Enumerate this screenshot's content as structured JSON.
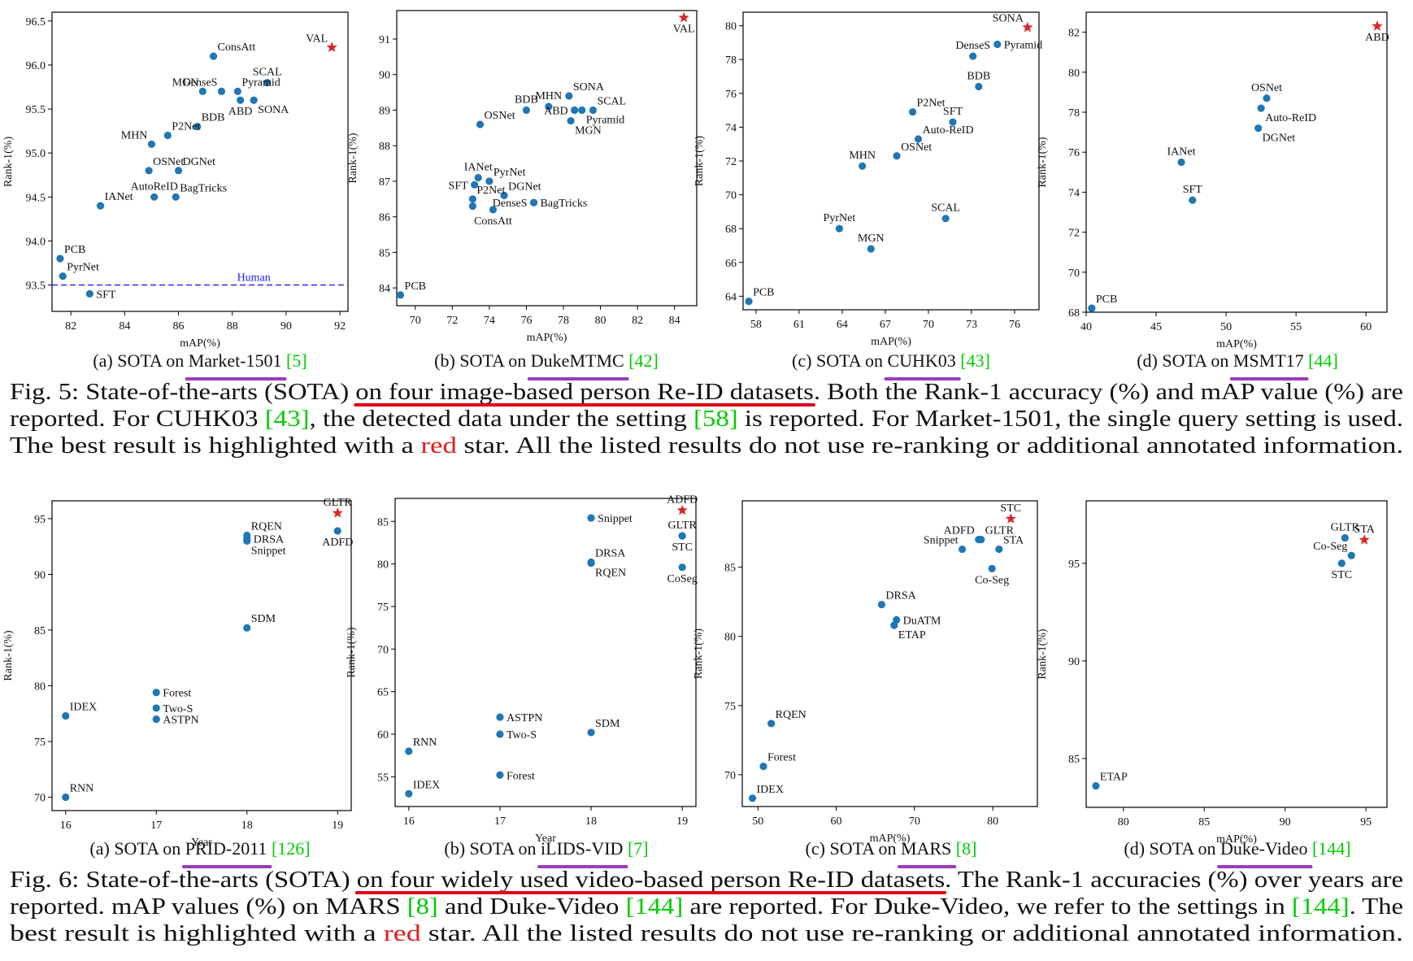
{
  "colors": {
    "point": "#1f77b4",
    "best": "#d62728",
    "human_line": "#1a1aff",
    "ref_green": "#00cc00",
    "highlight_red": "#e31a1c",
    "underline_purple": "#9b3cb7",
    "underline_red": "#e0001a",
    "text": "#111111"
  },
  "figure5": {
    "panels": [
      {
        "label_prefix": "(a) SOTA on ",
        "dataset": "Market-1501",
        "ref": "[5]"
      },
      {
        "label_prefix": "(b) SOTA on ",
        "dataset": "DukeMTMC",
        "ref": "[42]"
      },
      {
        "label_prefix": "(c) SOTA on ",
        "dataset": "CUHK03",
        "ref": "[43]"
      },
      {
        "label_prefix": "(d) SOTA on ",
        "dataset": "MSMT17",
        "ref": "[44]"
      }
    ],
    "caption_lines": [
      [
        {
          "t": "Fig. 5: State-of-the-arts (SOTA) "
        },
        {
          "t": "on four image-based person Re-ID datasets",
          "u": "red"
        },
        {
          "t": ". Both the Rank-1 accuracy (%) and mAP value (%) are"
        }
      ],
      [
        {
          "t": "reported. For CUHK03 "
        },
        {
          "t": "[43]",
          "c": "green"
        },
        {
          "t": ", the detected data under the setting "
        },
        {
          "t": "[58]",
          "c": "green"
        },
        {
          "t": " is reported. For Market-1501, the single query setting is used."
        }
      ],
      [
        {
          "t": "The best result is highlighted with a "
        },
        {
          "t": "red",
          "c": "red"
        },
        {
          "t": " star. All the listed results do not use re-ranking or additional annotated information."
        }
      ]
    ]
  },
  "figure6": {
    "panels": [
      {
        "label_prefix": "(a) SOTA on ",
        "dataset": "PRID-2011",
        "ref": "[126]"
      },
      {
        "label_prefix": "(b) SOTA on ",
        "dataset": "iLIDS-VID",
        "ref": "[7]"
      },
      {
        "label_prefix": "(c) SOTA on ",
        "dataset": "MARS",
        "ref": "[8]"
      },
      {
        "label_prefix": "(d) SOTA on ",
        "dataset": "Duke-Video",
        "ref": "[144]"
      }
    ],
    "caption_lines": [
      [
        {
          "t": "Fig. 6: State-of-the-arts (SOTA) "
        },
        {
          "t": "on four widely used video-based person Re-ID datasets",
          "u": "red"
        },
        {
          "t": ". The Rank-1 accuracies (%) over years are"
        }
      ],
      [
        {
          "t": "reported. mAP values (%) on MARS "
        },
        {
          "t": "[8]",
          "c": "green"
        },
        {
          "t": " and Duke-Video "
        },
        {
          "t": "[144]",
          "c": "green"
        },
        {
          "t": " are reported. For Duke-Video, we refer to the settings in "
        },
        {
          "t": "[144]",
          "c": "green"
        },
        {
          "t": ". The"
        }
      ],
      [
        {
          "t": "best result is highlighted with a "
        },
        {
          "t": "red",
          "c": "red"
        },
        {
          "t": " star. All the listed results do not use re-ranking or additional annotated information."
        }
      ]
    ]
  },
  "chart_data": [
    {
      "type": "scatter",
      "id": "market1501",
      "xlabel": "mAP(%)",
      "ylabel": "Rank-1(%)",
      "xlim": [
        81.3,
        92.3
      ],
      "ylim": [
        93.2,
        96.6
      ],
      "xticks": [
        82,
        84,
        86,
        88,
        90,
        92
      ],
      "yticks": [
        93.5,
        94.0,
        94.5,
        95.0,
        95.5,
        96.0,
        96.5
      ],
      "ytick_decimals": 1,
      "hline": {
        "y": 93.5,
        "label": "Human",
        "label_x": 88.8
      },
      "points": [
        {
          "label": "VAL",
          "x": 91.7,
          "y": 96.2,
          "best": true,
          "lp": "nw"
        },
        {
          "label": "ConsAtt",
          "x": 87.3,
          "y": 96.1,
          "lp": "ne"
        },
        {
          "label": "SCAL",
          "x": 89.3,
          "y": 95.8,
          "lp": "n"
        },
        {
          "label": "MGN",
          "x": 86.9,
          "y": 95.7,
          "lp": "nw"
        },
        {
          "label": "DenseS",
          "x": 87.6,
          "y": 95.7,
          "lp": "nw"
        },
        {
          "label": "Pyramid",
          "x": 88.2,
          "y": 95.7,
          "lp": "ne"
        },
        {
          "label": "ABD",
          "x": 88.3,
          "y": 95.6,
          "lp": "s"
        },
        {
          "label": "SONA",
          "x": 88.8,
          "y": 95.6,
          "lp": "se"
        },
        {
          "label": "BDB",
          "x": 86.7,
          "y": 95.3,
          "lp": "ne"
        },
        {
          "label": "P2Net",
          "x": 85.6,
          "y": 95.2,
          "lp": "ne"
        },
        {
          "label": "MHN",
          "x": 85.0,
          "y": 95.1,
          "lp": "nw"
        },
        {
          "label": "OSNet",
          "x": 84.9,
          "y": 94.8,
          "lp": "ne"
        },
        {
          "label": "DGNet",
          "x": 86.0,
          "y": 94.8,
          "lp": "ne"
        },
        {
          "label": "AutoReID",
          "x": 85.1,
          "y": 94.5,
          "lp": "n"
        },
        {
          "label": "BagTricks",
          "x": 85.9,
          "y": 94.5,
          "lp": "ne"
        },
        {
          "label": "IANet",
          "x": 83.1,
          "y": 94.4,
          "lp": "ne"
        },
        {
          "label": "PCB",
          "x": 81.6,
          "y": 93.8,
          "lp": "ne"
        },
        {
          "label": "PyrNet",
          "x": 81.7,
          "y": 93.6,
          "lp": "ne"
        },
        {
          "label": "SFT",
          "x": 82.7,
          "y": 93.4,
          "lp": "e"
        }
      ]
    },
    {
      "type": "scatter",
      "id": "dukemtmc",
      "xlabel": "mAP(%)",
      "ylabel": "Rank-1(%)",
      "xlim": [
        69.0,
        85.2
      ],
      "ylim": [
        83.5,
        91.8
      ],
      "xticks": [
        70,
        72,
        74,
        76,
        78,
        80,
        82,
        84
      ],
      "yticks": [
        84,
        85,
        86,
        87,
        88,
        89,
        90,
        91
      ],
      "ytick_decimals": 0,
      "points": [
        {
          "label": "VAL",
          "x": 84.5,
          "y": 91.6,
          "best": true,
          "lp": "s"
        },
        {
          "label": "SONA",
          "x": 78.3,
          "y": 89.4,
          "lp": "ne"
        },
        {
          "label": "MHN",
          "x": 77.2,
          "y": 89.1,
          "lp": "n"
        },
        {
          "label": "BDB",
          "x": 76.0,
          "y": 89.0,
          "lp": "n"
        },
        {
          "label": "SCAL",
          "x": 79.6,
          "y": 89.0,
          "lp": "ne"
        },
        {
          "label": "ABD",
          "x": 78.6,
          "y": 89.0,
          "lp": "w"
        },
        {
          "label": "Pyramid",
          "x": 79.0,
          "y": 89.0,
          "lp": "se"
        },
        {
          "label": "MGN",
          "x": 78.4,
          "y": 88.7,
          "lp": "se"
        },
        {
          "label": "OSNet",
          "x": 73.5,
          "y": 88.6,
          "lp": "ne"
        },
        {
          "label": "IANet",
          "x": 73.4,
          "y": 87.1,
          "lp": "n"
        },
        {
          "label": "PyrNet",
          "x": 74.0,
          "y": 87.0,
          "lp": "ne"
        },
        {
          "label": "SFT",
          "x": 73.2,
          "y": 86.9,
          "lp": "w"
        },
        {
          "label": "DGNet",
          "x": 74.8,
          "y": 86.6,
          "lp": "ne"
        },
        {
          "label": "P2Net",
          "x": 73.1,
          "y": 86.5,
          "lp": "ne"
        },
        {
          "label": "DenseS",
          "x": 76.4,
          "y": 86.4,
          "lp": "w"
        },
        {
          "label": "BagTricks",
          "x": 76.4,
          "y": 86.4,
          "lp": "e"
        },
        {
          "label": "ConsAtt",
          "x": 74.2,
          "y": 86.2,
          "lp": "s"
        },
        {
          "label": "",
          "x": 73.1,
          "y": 86.3
        },
        {
          "label": "PCB",
          "x": 69.2,
          "y": 83.8,
          "lp": "ne"
        }
      ]
    },
    {
      "type": "scatter",
      "id": "cuhk03",
      "xlabel": "mAP(%)",
      "ylabel": "Rank-1(%)",
      "xlim": [
        57.1,
        77.7
      ],
      "ylim": [
        63.2,
        80.8
      ],
      "xticks": [
        58,
        61,
        64,
        67,
        70,
        73,
        76
      ],
      "yticks": [
        64,
        66,
        68,
        70,
        72,
        74,
        76,
        78,
        80
      ],
      "ytick_decimals": 0,
      "points": [
        {
          "label": "SONA",
          "x": 76.9,
          "y": 79.9,
          "best": true,
          "lp": "nw"
        },
        {
          "label": "Pyramid",
          "x": 74.8,
          "y": 78.9,
          "lp": "e"
        },
        {
          "label": "DenseS",
          "x": 73.1,
          "y": 78.2,
          "lp": "n"
        },
        {
          "label": "BDB",
          "x": 73.5,
          "y": 76.4,
          "lp": "n"
        },
        {
          "label": "P2Net",
          "x": 68.9,
          "y": 74.9,
          "lp": "ne"
        },
        {
          "label": "SFT",
          "x": 71.7,
          "y": 74.3,
          "lp": "n"
        },
        {
          "label": "Auto-ReID",
          "x": 69.3,
          "y": 73.3,
          "lp": "ne"
        },
        {
          "label": "OSNet",
          "x": 67.8,
          "y": 72.3,
          "lp": "ne"
        },
        {
          "label": "MHN",
          "x": 65.4,
          "y": 71.7,
          "lp": "n"
        },
        {
          "label": "SCAL",
          "x": 71.2,
          "y": 68.6,
          "lp": "n"
        },
        {
          "label": "PyrNet",
          "x": 63.8,
          "y": 68.0,
          "lp": "n"
        },
        {
          "label": "MGN",
          "x": 66.0,
          "y": 66.8,
          "lp": "n"
        },
        {
          "label": "PCB",
          "x": 57.5,
          "y": 63.7,
          "lp": "ne"
        }
      ]
    },
    {
      "type": "scatter",
      "id": "msmt17",
      "xlabel": "mAP(%)",
      "ylabel": "Rank-1(%)",
      "xlim": [
        40.0,
        61.5
      ],
      "ylim": [
        68.0,
        83.0
      ],
      "xticks": [
        40,
        45,
        50,
        55,
        60
      ],
      "yticks": [
        68,
        70,
        72,
        74,
        76,
        78,
        80,
        82
      ],
      "ytick_decimals": 0,
      "points": [
        {
          "label": "ABD",
          "x": 60.8,
          "y": 82.3,
          "best": true,
          "lp": "s"
        },
        {
          "label": "OSNet",
          "x": 52.9,
          "y": 78.7,
          "lp": "n"
        },
        {
          "label": "Auto-ReID",
          "x": 52.5,
          "y": 78.2,
          "lp": "se"
        },
        {
          "label": "DGNet",
          "x": 52.3,
          "y": 77.2,
          "lp": "se"
        },
        {
          "label": "IANet",
          "x": 46.8,
          "y": 75.5,
          "lp": "n"
        },
        {
          "label": "SFT",
          "x": 47.6,
          "y": 73.6,
          "lp": "n"
        },
        {
          "label": "PCB",
          "x": 40.4,
          "y": 68.2,
          "lp": "ne"
        }
      ]
    },
    {
      "type": "scatter",
      "id": "prid2011",
      "xlabel": "Year",
      "ylabel": "Rank-1(%)",
      "xlim": [
        15.85,
        19.15
      ],
      "ylim": [
        68.8,
        96.6
      ],
      "xticks": [
        16,
        17,
        18,
        19
      ],
      "yticks": [
        70,
        75,
        80,
        85,
        90,
        95
      ],
      "ytick_decimals": 0,
      "points": [
        {
          "label": "GLTR",
          "x": 19.0,
          "y": 95.5,
          "best": true,
          "lp": "n"
        },
        {
          "label": "ADFD",
          "x": 19.0,
          "y": 93.9,
          "lp": "s"
        },
        {
          "label": "RQEN",
          "x": 18.0,
          "y": 93.5,
          "lp": "ne"
        },
        {
          "label": "DRSA",
          "x": 18.0,
          "y": 93.2,
          "lp": "e"
        },
        {
          "label": "Snippet",
          "x": 18.0,
          "y": 93.0,
          "lp": "se"
        },
        {
          "label": "SDM",
          "x": 18.0,
          "y": 85.2,
          "lp": "ne"
        },
        {
          "label": "Forest",
          "x": 17.0,
          "y": 79.4,
          "lp": "e"
        },
        {
          "label": "Two-S",
          "x": 17.0,
          "y": 78.0,
          "lp": "e"
        },
        {
          "label": "ASTPN",
          "x": 17.0,
          "y": 77.0,
          "lp": "e"
        },
        {
          "label": "IDEX",
          "x": 16.0,
          "y": 77.3,
          "lp": "ne"
        },
        {
          "label": "RNN",
          "x": 16.0,
          "y": 70.0,
          "lp": "ne"
        }
      ]
    },
    {
      "type": "scatter",
      "id": "ilidsvid",
      "xlabel": "Year",
      "ylabel": "Rank-1(%)",
      "xlim": [
        15.85,
        19.15
      ],
      "ylim": [
        51.5,
        87.7
      ],
      "xticks": [
        16,
        17,
        18,
        19
      ],
      "yticks": [
        55,
        60,
        65,
        70,
        75,
        80,
        85
      ],
      "ytick_decimals": 0,
      "points": [
        {
          "label": "ADFD",
          "x": 19.0,
          "y": 86.3,
          "best": true,
          "lp": "n"
        },
        {
          "label": "GLTR",
          "x": 19.0,
          "y": 83.3,
          "lp": "n"
        },
        {
          "label": "STC",
          "x": 19.0,
          "y": 83.3,
          "lp": "s"
        },
        {
          "label": "CoSeg",
          "x": 19.0,
          "y": 79.6,
          "lp": "s"
        },
        {
          "label": "Snippet",
          "x": 18.0,
          "y": 85.4,
          "lp": "e"
        },
        {
          "label": "DRSA",
          "x": 18.0,
          "y": 80.2,
          "lp": "ne"
        },
        {
          "label": "RQEN",
          "x": 18.0,
          "y": 80.1,
          "lp": "se"
        },
        {
          "label": "SDM",
          "x": 18.0,
          "y": 60.2,
          "lp": "ne"
        },
        {
          "label": "ASTPN",
          "x": 17.0,
          "y": 62.0,
          "lp": "e"
        },
        {
          "label": "Two-S",
          "x": 17.0,
          "y": 60.0,
          "lp": "e"
        },
        {
          "label": "Forest",
          "x": 17.0,
          "y": 55.2,
          "lp": "e"
        },
        {
          "label": "RNN",
          "x": 16.0,
          "y": 58.0,
          "lp": "ne"
        },
        {
          "label": "IDEX",
          "x": 16.0,
          "y": 53.0,
          "lp": "ne"
        }
      ]
    },
    {
      "type": "scatter",
      "id": "mars",
      "xlabel": "mAP(%)",
      "ylabel": "Rank-1(%)",
      "xlim": [
        48.0,
        85.7
      ],
      "ylim": [
        67.7,
        89.8
      ],
      "xticks": [
        50,
        60,
        70,
        80
      ],
      "yticks": [
        70,
        75,
        80,
        85
      ],
      "ytick_decimals": 0,
      "points": [
        {
          "label": "STC",
          "x": 82.3,
          "y": 88.5,
          "best": true,
          "lp": "n"
        },
        {
          "label": "ADFD",
          "x": 78.2,
          "y": 87.0,
          "lp": "nw"
        },
        {
          "label": "GLTR",
          "x": 78.5,
          "y": 87.0,
          "lp": "ne"
        },
        {
          "label": "Snippet",
          "x": 76.1,
          "y": 86.3,
          "lp": "nw"
        },
        {
          "label": "STA",
          "x": 80.8,
          "y": 86.3,
          "lp": "ne"
        },
        {
          "label": "Co-Seg",
          "x": 79.9,
          "y": 84.9,
          "lp": "s"
        },
        {
          "label": "DRSA",
          "x": 65.8,
          "y": 82.3,
          "lp": "ne"
        },
        {
          "label": "DuATM",
          "x": 67.7,
          "y": 81.2,
          "lp": "e"
        },
        {
          "label": "ETAP",
          "x": 67.4,
          "y": 80.8,
          "lp": "se"
        },
        {
          "label": "RQEN",
          "x": 51.7,
          "y": 73.7,
          "lp": "ne"
        },
        {
          "label": "Forest",
          "x": 50.7,
          "y": 70.6,
          "lp": "ne"
        },
        {
          "label": "IDEX",
          "x": 49.3,
          "y": 68.3,
          "lp": "ne"
        }
      ]
    },
    {
      "type": "scatter",
      "id": "dukevideo",
      "xlabel": "mAP(%)",
      "ylabel": "Rank-1(%)",
      "xlim": [
        77.7,
        96.3
      ],
      "ylim": [
        82.5,
        98.2
      ],
      "xticks": [
        80,
        85,
        90,
        95
      ],
      "yticks": [
        85,
        90,
        95
      ],
      "ytick_decimals": 0,
      "points": [
        {
          "label": "STA",
          "x": 94.9,
          "y": 96.2,
          "best": true,
          "lp": "n"
        },
        {
          "label": "GLTR",
          "x": 93.7,
          "y": 96.3,
          "lp": "n"
        },
        {
          "label": "Co-Seg",
          "x": 94.1,
          "y": 95.4,
          "lp": "nw"
        },
        {
          "label": "STC",
          "x": 93.5,
          "y": 95.0,
          "lp": "s"
        },
        {
          "label": "ETAP",
          "x": 78.3,
          "y": 83.6,
          "lp": "ne"
        }
      ]
    }
  ]
}
